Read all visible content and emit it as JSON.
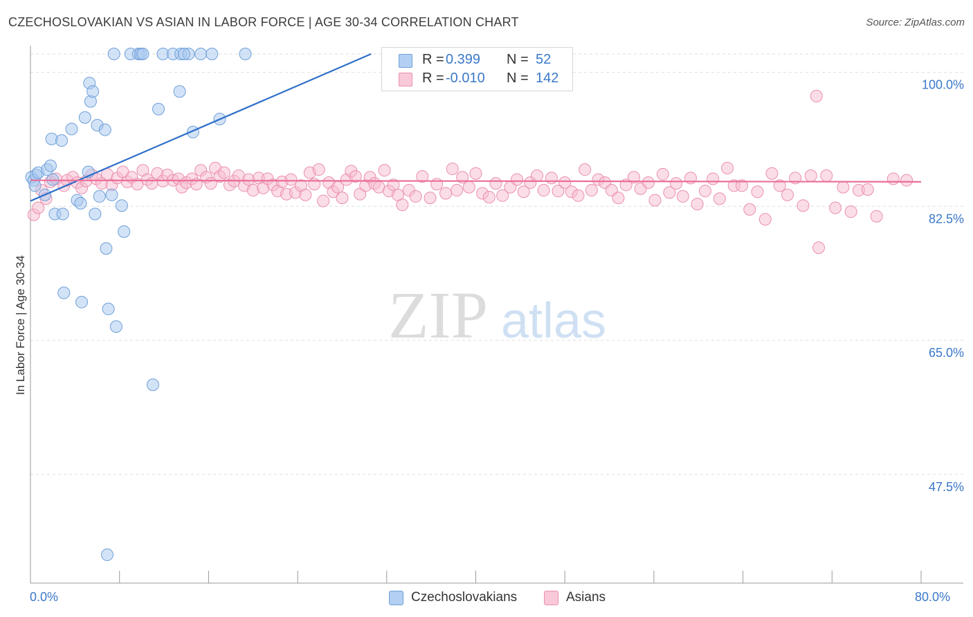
{
  "header": {
    "title": "CZECHOSLOVAKIAN VS ASIAN IN LABOR FORCE | AGE 30-34 CORRELATION CHART",
    "source": "Source: ZipAtlas.com"
  },
  "watermark": {
    "zip": "ZIP",
    "atlas": "atlas"
  },
  "legend": {
    "rows": [
      {
        "r_label": "R =",
        "r_value": "0.399",
        "n_label": "N =",
        "n_value": "52",
        "color": "#a8c8f0"
      },
      {
        "r_label": "R =",
        "r_value": "-0.010",
        "n_label": "N =",
        "n_value": "142",
        "color": "#f7bcd0"
      }
    ]
  },
  "bottom_legend": {
    "items": [
      "Czechoslovakians",
      "Asians"
    ]
  },
  "axis": {
    "x_min_label": "0.0%",
    "x_max_label": "80.0%"
  },
  "colors": {
    "blue_fill": "#a8c8f0",
    "blue_stroke": "#6e9fd8",
    "blue_line": "#2f6fc9",
    "pink_fill": "#f7bcd0",
    "pink_stroke": "#ea8fb0",
    "pink_line": "#ea6f99",
    "tick_label": "#3a78c9",
    "grid": "#dddddd"
  },
  "chart_data": {
    "type": "scatter",
    "title": "CZECHOSLOVAKIAN VS ASIAN IN LABOR FORCE | AGE 30-34 CORRELATION CHART",
    "xlabel": "",
    "ylabel": "In Labor Force | Age 30-34",
    "xlim": [
      0,
      80
    ],
    "ylim": [
      33.3,
      102.4
    ],
    "y_ticks": [
      47.5,
      65.0,
      82.5,
      100.0
    ],
    "y_tick_labels": [
      "47.5%",
      "65.0%",
      "82.5%",
      "100.0%"
    ],
    "x_tick_labels": [
      "0.0%",
      "80.0%"
    ],
    "grid": true,
    "legend_position": "top-center",
    "series": [
      {
        "name": "Czechoslovakians",
        "R": 0.399,
        "N": 52,
        "trend": {
          "x": [
            0,
            30.6
          ],
          "y": [
            83.2,
            102.4
          ]
        },
        "points": [
          [
            0.1,
            86.3
          ],
          [
            0.3,
            85.9
          ],
          [
            0.4,
            85.2
          ],
          [
            0.5,
            86.6
          ],
          [
            0.7,
            86.9
          ],
          [
            1.3,
            84.0
          ],
          [
            1.5,
            87.3
          ],
          [
            1.8,
            87.8
          ],
          [
            1.9,
            91.3
          ],
          [
            2.2,
            81.5
          ],
          [
            2.8,
            91.1
          ],
          [
            2.9,
            81.5
          ],
          [
            3.0,
            71.2
          ],
          [
            3.7,
            92.6
          ],
          [
            4.2,
            83.3
          ],
          [
            4.5,
            82.9
          ],
          [
            4.6,
            70.0
          ],
          [
            4.9,
            94.1
          ],
          [
            5.2,
            87.0
          ],
          [
            5.3,
            98.6
          ],
          [
            5.4,
            96.2
          ],
          [
            5.6,
            97.5
          ],
          [
            5.8,
            81.5
          ],
          [
            6.0,
            93.1
          ],
          [
            6.2,
            83.8
          ],
          [
            6.7,
            92.5
          ],
          [
            6.8,
            77.0
          ],
          [
            6.9,
            37.0
          ],
          [
            7.0,
            69.1
          ],
          [
            7.5,
            102.4
          ],
          [
            7.7,
            66.8
          ],
          [
            8.2,
            82.6
          ],
          [
            8.4,
            79.2
          ],
          [
            9.0,
            102.4
          ],
          [
            9.7,
            102.4
          ],
          [
            9.9,
            102.4
          ],
          [
            10.1,
            102.4
          ],
          [
            11.0,
            59.2
          ],
          [
            11.5,
            95.2
          ],
          [
            11.9,
            102.4
          ],
          [
            12.8,
            102.4
          ],
          [
            13.4,
            97.5
          ],
          [
            13.5,
            102.4
          ],
          [
            14.2,
            102.4
          ],
          [
            13.8,
            102.4
          ],
          [
            14.6,
            92.2
          ],
          [
            15.3,
            102.4
          ],
          [
            16.3,
            102.4
          ],
          [
            17.0,
            93.9
          ],
          [
            19.3,
            102.4
          ],
          [
            2.0,
            86.0
          ],
          [
            7.3,
            84.0
          ]
        ]
      },
      {
        "name": "Asians",
        "R": -0.01,
        "N": 142,
        "trend": {
          "x": [
            0,
            80
          ],
          "y": [
            85.9,
            85.7
          ]
        },
        "points": [
          [
            0.3,
            81.4
          ],
          [
            0.7,
            82.3
          ],
          [
            1.0,
            84.6
          ],
          [
            1.4,
            83.5
          ],
          [
            1.8,
            85.7
          ],
          [
            2.3,
            86.1
          ],
          [
            3.0,
            85.2
          ],
          [
            3.3,
            85.9
          ],
          [
            3.8,
            86.3
          ],
          [
            4.2,
            85.6
          ],
          [
            4.6,
            84.9
          ],
          [
            5.0,
            85.8
          ],
          [
            5.5,
            86.6
          ],
          [
            5.9,
            86.1
          ],
          [
            6.4,
            85.5
          ],
          [
            6.9,
            86.7
          ],
          [
            7.3,
            85.3
          ],
          [
            7.8,
            86.2
          ],
          [
            8.3,
            87.0
          ],
          [
            8.7,
            85.7
          ],
          [
            9.1,
            86.3
          ],
          [
            9.6,
            85.4
          ],
          [
            10.1,
            87.2
          ],
          [
            10.5,
            86.0
          ],
          [
            10.9,
            85.5
          ],
          [
            11.4,
            86.8
          ],
          [
            11.9,
            85.8
          ],
          [
            12.3,
            86.6
          ],
          [
            12.8,
            85.9
          ],
          [
            13.3,
            86.1
          ],
          [
            13.6,
            85.0
          ],
          [
            14.0,
            85.6
          ],
          [
            14.5,
            86.1
          ],
          [
            14.9,
            85.4
          ],
          [
            15.3,
            87.2
          ],
          [
            15.8,
            86.3
          ],
          [
            16.2,
            85.5
          ],
          [
            16.6,
            87.5
          ],
          [
            17.0,
            86.4
          ],
          [
            17.4,
            86.9
          ],
          [
            17.9,
            85.3
          ],
          [
            18.3,
            85.8
          ],
          [
            18.7,
            86.5
          ],
          [
            19.2,
            85.2
          ],
          [
            19.6,
            86.0
          ],
          [
            20.0,
            84.6
          ],
          [
            20.5,
            86.2
          ],
          [
            20.9,
            84.9
          ],
          [
            21.3,
            86.1
          ],
          [
            21.8,
            85.3
          ],
          [
            22.2,
            84.5
          ],
          [
            22.6,
            85.7
          ],
          [
            23.0,
            84.1
          ],
          [
            23.4,
            86.0
          ],
          [
            23.8,
            84.3
          ],
          [
            24.3,
            85.2
          ],
          [
            24.7,
            84.0
          ],
          [
            25.1,
            86.9
          ],
          [
            25.5,
            85.4
          ],
          [
            25.9,
            87.3
          ],
          [
            26.3,
            83.2
          ],
          [
            26.8,
            85.6
          ],
          [
            27.2,
            84.4
          ],
          [
            27.6,
            85.0
          ],
          [
            28.0,
            83.6
          ],
          [
            28.4,
            86.0
          ],
          [
            28.8,
            87.1
          ],
          [
            29.2,
            86.4
          ],
          [
            29.6,
            84.1
          ],
          [
            30.1,
            85.2
          ],
          [
            30.5,
            86.3
          ],
          [
            30.9,
            85.5
          ],
          [
            31.3,
            85.0
          ],
          [
            31.8,
            87.2
          ],
          [
            32.2,
            84.5
          ],
          [
            32.6,
            85.3
          ],
          [
            33.0,
            84.0
          ],
          [
            33.4,
            82.7
          ],
          [
            34.0,
            84.6
          ],
          [
            34.6,
            83.8
          ],
          [
            35.2,
            86.4
          ],
          [
            35.9,
            83.6
          ],
          [
            36.5,
            85.4
          ],
          [
            37.3,
            84.2
          ],
          [
            37.9,
            87.4
          ],
          [
            38.3,
            84.6
          ],
          [
            38.8,
            86.3
          ],
          [
            39.4,
            85.0
          ],
          [
            40.0,
            86.8
          ],
          [
            40.6,
            84.2
          ],
          [
            41.2,
            83.7
          ],
          [
            41.8,
            85.5
          ],
          [
            42.4,
            83.9
          ],
          [
            43.1,
            85.0
          ],
          [
            43.7,
            86.0
          ],
          [
            44.3,
            84.4
          ],
          [
            44.9,
            85.6
          ],
          [
            45.5,
            86.5
          ],
          [
            46.1,
            84.6
          ],
          [
            46.8,
            86.2
          ],
          [
            47.4,
            84.5
          ],
          [
            48.0,
            85.6
          ],
          [
            48.6,
            84.4
          ],
          [
            49.2,
            83.9
          ],
          [
            49.8,
            87.3
          ],
          [
            50.4,
            84.6
          ],
          [
            51.0,
            86.0
          ],
          [
            51.6,
            85.6
          ],
          [
            52.2,
            84.6
          ],
          [
            52.8,
            83.6
          ],
          [
            53.5,
            85.3
          ],
          [
            54.2,
            86.3
          ],
          [
            54.8,
            84.8
          ],
          [
            55.5,
            85.6
          ],
          [
            56.1,
            83.3
          ],
          [
            56.8,
            86.7
          ],
          [
            57.4,
            84.3
          ],
          [
            58.0,
            85.5
          ],
          [
            58.6,
            83.8
          ],
          [
            59.3,
            86.2
          ],
          [
            59.9,
            82.8
          ],
          [
            60.6,
            84.5
          ],
          [
            61.3,
            86.1
          ],
          [
            61.9,
            83.5
          ],
          [
            62.6,
            87.5
          ],
          [
            63.2,
            85.2
          ],
          [
            63.9,
            85.2
          ],
          [
            64.6,
            82.1
          ],
          [
            65.3,
            84.4
          ],
          [
            66.0,
            80.8
          ],
          [
            66.6,
            86.8
          ],
          [
            67.3,
            85.2
          ],
          [
            68.0,
            84.0
          ],
          [
            68.7,
            86.2
          ],
          [
            69.4,
            82.6
          ],
          [
            70.1,
            86.5
          ],
          [
            70.8,
            77.1
          ],
          [
            71.5,
            86.5
          ],
          [
            72.3,
            82.3
          ],
          [
            73.0,
            85.0
          ],
          [
            73.7,
            81.8
          ],
          [
            74.4,
            84.6
          ],
          [
            75.2,
            84.7
          ],
          [
            76.0,
            81.2
          ],
          [
            77.5,
            86.1
          ],
          [
            78.7,
            85.9
          ],
          [
            70.6,
            96.9
          ]
        ]
      }
    ]
  }
}
